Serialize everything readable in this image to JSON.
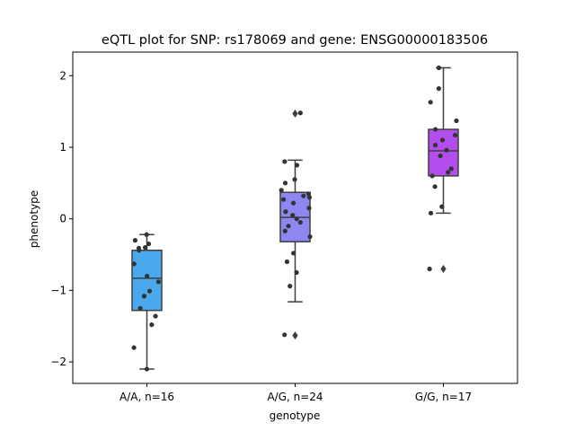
{
  "chart_data": {
    "type": "box",
    "title": "eQTL plot for SNP: rs178069 and gene: ENSG00000183506",
    "xlabel": "genotype",
    "ylabel": "phenotype",
    "ylim": [
      -2.3,
      2.33
    ],
    "yticks": [
      -2,
      -1,
      0,
      1,
      2
    ],
    "categories": [
      "A/A, n=16",
      "A/G, n=24",
      "G/G, n=17"
    ],
    "colors": [
      "#4aa8ec",
      "#8e87f1",
      "#b44ded"
    ],
    "boxes": [
      {
        "min": -2.1,
        "q1": -1.28,
        "median": -0.83,
        "q3": -0.44,
        "max": -0.22,
        "outliers": []
      },
      {
        "min": -1.16,
        "q1": -0.32,
        "median": 0.02,
        "q3": 0.37,
        "max": 0.82,
        "outliers": [
          1.47,
          -1.63
        ]
      },
      {
        "min": 0.08,
        "q1": 0.6,
        "median": 0.95,
        "q3": 1.25,
        "max": 2.11,
        "outliers": [
          -0.7
        ]
      }
    ],
    "points": [
      [
        -0.22,
        -0.35,
        -0.3,
        -0.44,
        -0.4,
        -0.8,
        -0.63,
        -0.88,
        -1.01,
        -1.08,
        -1.25,
        -1.36,
        -1.48,
        -1.8,
        -2.1,
        -0.41
      ],
      [
        1.48,
        0.8,
        0.75,
        0.55,
        0.5,
        0.4,
        0.35,
        0.3,
        0.27,
        0.22,
        0.15,
        0.1,
        0.05,
        0.0,
        -0.05,
        -0.1,
        -0.17,
        -0.25,
        -0.48,
        -0.6,
        -0.75,
        -0.94,
        -1.62,
        0.32
      ],
      [
        2.11,
        1.82,
        1.63,
        1.37,
        1.25,
        1.17,
        1.1,
        1.03,
        0.96,
        0.88,
        0.7,
        0.65,
        0.6,
        0.45,
        0.17,
        0.08,
        -0.7
      ]
    ],
    "grid": false,
    "legend": "none"
  }
}
